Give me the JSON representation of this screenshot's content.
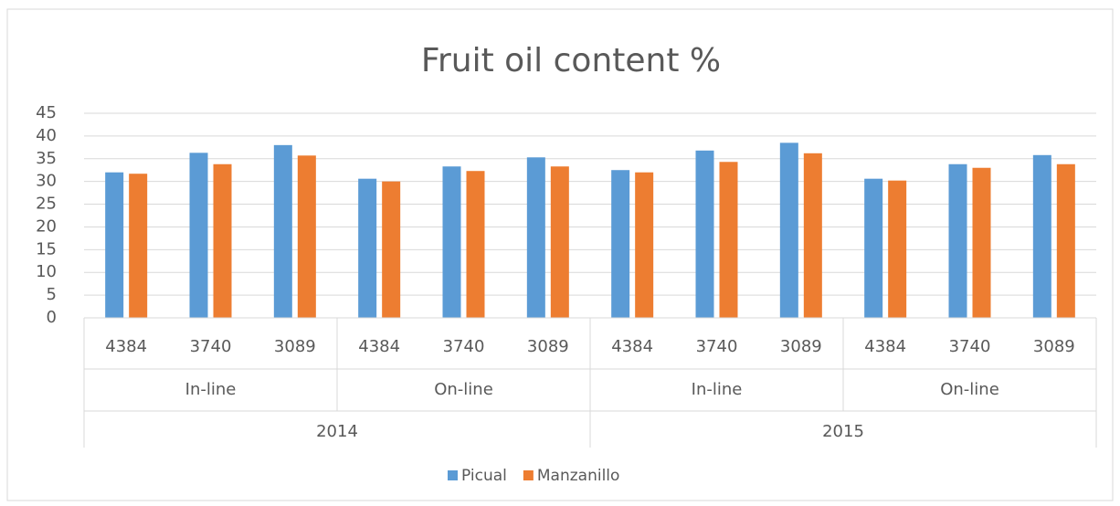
{
  "chart_data": {
    "type": "bar",
    "title": "Fruit oil content %",
    "categories": [
      "4384",
      "3740",
      "3089",
      "4384",
      "3740",
      "3089",
      "4384",
      "3740",
      "3089",
      "4384",
      "3740",
      "3089"
    ],
    "category_levels": [
      [
        "In-line",
        "On-line",
        "In-line",
        "On-line"
      ],
      [
        "2014",
        "2015"
      ]
    ],
    "series": [
      {
        "name": "Picual",
        "color": "#5b9bd5",
        "values": [
          32,
          36.3,
          38,
          30.6,
          33.3,
          35.3,
          32.5,
          36.8,
          38.5,
          30.6,
          33.8,
          35.8
        ]
      },
      {
        "name": "Manzanillo",
        "color": "#ed7d31",
        "values": [
          31.7,
          33.8,
          35.7,
          30,
          32.3,
          33.3,
          32,
          34.3,
          36.2,
          30.2,
          33,
          33.8
        ]
      }
    ],
    "ylim": [
      0,
      45
    ],
    "yticks": [
      0,
      5,
      10,
      15,
      20,
      25,
      30,
      35,
      40,
      45
    ],
    "grid": true,
    "legend": "bottom"
  }
}
